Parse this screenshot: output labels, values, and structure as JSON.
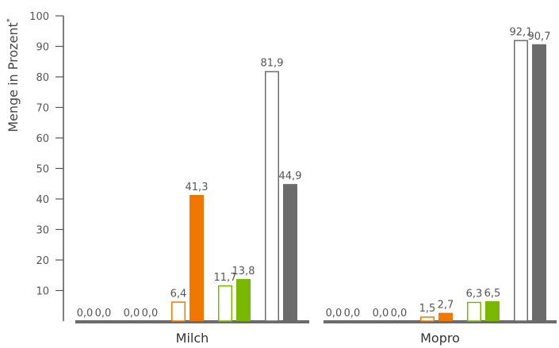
{
  "chart_data": {
    "type": "bar",
    "title": "",
    "xlabel": "",
    "ylabel": "Menge in Prozent",
    "ylabel_marker": "*",
    "ylim": [
      0,
      100
    ],
    "yticks": [
      10,
      20,
      30,
      40,
      50,
      60,
      70,
      80,
      90,
      100
    ],
    "grid": false,
    "categories": [
      "Milch",
      "Mopro"
    ],
    "series": [
      {
        "values": [
          0.0,
          0.0
        ],
        "labels": [
          "0,0",
          "0,0"
        ],
        "color": "#f07800",
        "style": "outline"
      },
      {
        "values": [
          0.0,
          0.0
        ],
        "labels": [
          "0,0",
          "0,0"
        ],
        "color": "#f07800",
        "style": "filled"
      },
      {
        "values": [
          0.0,
          0.0
        ],
        "labels": [
          "0,0",
          "0,0"
        ],
        "color": "#7ab800",
        "style": "outline"
      },
      {
        "values": [
          0.0,
          0.0
        ],
        "labels": [
          "0,0",
          "0,0"
        ],
        "color": "#7ab800",
        "style": "filled"
      },
      {
        "values": [
          6.4,
          1.5
        ],
        "labels": [
          "6,4",
          "1,5"
        ],
        "color": "#f07800",
        "style": "outline"
      },
      {
        "values": [
          41.3,
          2.7
        ],
        "labels": [
          "41,3",
          "2,7"
        ],
        "color": "#f07800",
        "style": "filled"
      },
      {
        "values": [
          11.7,
          6.3
        ],
        "labels": [
          "11,7",
          "6,3"
        ],
        "color": "#7ab800",
        "style": "outline"
      },
      {
        "values": [
          13.8,
          6.5
        ],
        "labels": [
          "13,8",
          "6,5"
        ],
        "color": "#7ab800",
        "style": "filled"
      },
      {
        "values": [
          81.9,
          92.1
        ],
        "labels": [
          "81,9",
          "92,1"
        ],
        "color": "#6b6b6b",
        "style": "outline"
      },
      {
        "values": [
          44.9,
          90.7
        ],
        "labels": [
          "44,9",
          "90,7"
        ],
        "color": "#6b6b6b",
        "style": "filled"
      }
    ],
    "colors": {
      "axis": "#555555",
      "baseline": "#6b6b6b",
      "text": "#555555"
    }
  }
}
